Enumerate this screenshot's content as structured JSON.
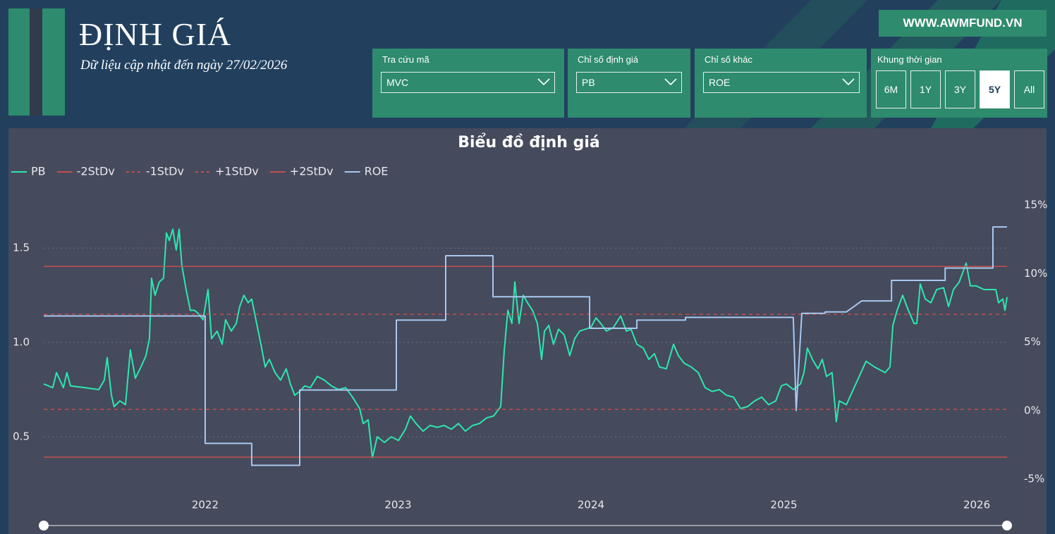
{
  "header": {
    "title": "ĐỊNH GIÁ",
    "subtitle": "Dữ liệu cập nhật đến ngày 27/02/2026",
    "website": "WWW.AWMFUND.VN"
  },
  "filters": [
    {
      "label": "Tra cứu mã",
      "value": "MVC"
    },
    {
      "label": "Chỉ số định giá",
      "value": "PB"
    },
    {
      "label": "Chỉ số khác",
      "value": "ROE"
    }
  ],
  "time_frame": {
    "label": "Khung thời gian",
    "options": [
      "6M",
      "1Y",
      "3Y",
      "5Y",
      "All"
    ],
    "selected": "5Y"
  },
  "chart_data": {
    "type": "line",
    "title": "Biểu đồ định giá",
    "legend": "top-left",
    "grid": true,
    "xlim": [
      2021.163,
      2026.157
    ],
    "xticks": [
      2022,
      2023,
      2024,
      2025,
      2026
    ],
    "ylim": [
      0.276,
      1.728
    ],
    "yticks": [
      0.5,
      {
        "value": 1,
        "label": "1.0"
      },
      1.5
    ],
    "y2lim": [
      -5,
      15
    ],
    "y2ticks": [
      {
        "value": -5,
        "label": "-5%"
      },
      {
        "value": 0,
        "label": "0%"
      },
      {
        "value": 5,
        "label": "5%"
      },
      {
        "value": 10,
        "label": "10%"
      },
      {
        "value": 15,
        "label": "15%"
      }
    ],
    "series": [
      {
        "name": "PB",
        "color": "#2ee6b0",
        "dash": false,
        "x": [
          2021.163,
          2021.21,
          2021.229,
          2021.265,
          2021.283,
          2021.302,
          2021.375,
          2021.448,
          2021.477,
          2021.492,
          2021.514,
          2021.528,
          2021.558,
          2021.587,
          2021.612,
          2021.638,
          2021.667,
          2021.693,
          2021.711,
          2021.722,
          2021.74,
          2021.762,
          2021.784,
          2021.799,
          2021.814,
          2021.832,
          2021.85,
          2021.865,
          2021.879,
          2021.901,
          2021.923,
          2021.945,
          2021.967,
          2021.989,
          2022.015,
          2022.033,
          2022.062,
          2022.088,
          2022.106,
          2022.135,
          2022.161,
          2022.179,
          2022.201,
          2022.223,
          2022.241,
          2022.263,
          2022.289,
          2022.311,
          2022.333,
          2022.362,
          2022.391,
          2022.42,
          2022.442,
          2022.464,
          2022.49,
          2022.516,
          2022.545,
          2022.581,
          2022.618,
          2022.654,
          2022.691,
          2022.728,
          2022.764,
          2022.801,
          2022.819,
          2022.845,
          2022.867,
          2022.892,
          2022.929,
          2022.965,
          2023.002,
          2023.038,
          2023.064,
          2023.093,
          2023.13,
          2023.166,
          2023.203,
          2023.239,
          2023.276,
          2023.313,
          2023.349,
          2023.386,
          2023.422,
          2023.459,
          2023.495,
          2023.532,
          2023.55,
          2023.569,
          2023.59,
          2023.605,
          2023.627,
          2023.649,
          2023.671,
          2023.697,
          2023.722,
          2023.744,
          2023.759,
          2023.781,
          2023.806,
          2023.832,
          2023.861,
          2023.89,
          2023.916,
          2023.941,
          2023.971,
          2024.0,
          2024.026,
          2024.051,
          2024.08,
          2024.117,
          2024.154,
          2024.183,
          2024.208,
          2024.238,
          2024.271,
          2024.3,
          2024.329,
          2024.355,
          2024.391,
          2024.428,
          2024.453,
          2024.483,
          2024.519,
          2024.556,
          2024.592,
          2024.629,
          2024.665,
          2024.702,
          2024.739,
          2024.775,
          2024.812,
          2024.848,
          2024.885,
          2024.921,
          2024.958,
          2024.987,
          2025.013,
          2025.049,
          2025.086,
          2025.104,
          2025.122,
          2025.148,
          2025.177,
          2025.199,
          2025.221,
          2025.25,
          2025.272,
          2025.287,
          2025.324,
          2025.426,
          2025.47,
          2025.525,
          2025.55,
          2025.565,
          2025.587,
          2025.616,
          2025.645,
          2025.675,
          2025.689,
          2025.707,
          2025.733,
          2025.762,
          2025.792,
          2025.828,
          2025.854,
          2025.879,
          2025.909,
          2025.945,
          2025.967,
          2025.996,
          2026.037,
          2026.099,
          2026.113,
          2026.135,
          2026.146,
          2026.157
        ],
        "values": [
          0.78,
          0.76,
          0.84,
          0.76,
          0.84,
          0.77,
          0.76,
          0.75,
          0.8,
          0.92,
          0.72,
          0.66,
          0.69,
          0.67,
          0.96,
          0.81,
          0.87,
          0.93,
          1.02,
          1.34,
          1.25,
          1.32,
          1.34,
          1.58,
          1.54,
          1.6,
          1.49,
          1.6,
          1.41,
          1.28,
          1.17,
          1.17,
          1.15,
          1.12,
          1.28,
          1.02,
          1.06,
          0.99,
          1.12,
          1.06,
          1.1,
          1.19,
          1.25,
          1.21,
          1.23,
          1.12,
          0.99,
          0.87,
          0.91,
          0.84,
          0.8,
          0.86,
          0.78,
          0.72,
          0.74,
          0.77,
          0.76,
          0.82,
          0.8,
          0.77,
          0.75,
          0.76,
          0.71,
          0.65,
          0.57,
          0.59,
          0.39,
          0.5,
          0.47,
          0.5,
          0.48,
          0.54,
          0.61,
          0.57,
          0.53,
          0.56,
          0.55,
          0.56,
          0.54,
          0.57,
          0.53,
          0.56,
          0.57,
          0.6,
          0.61,
          0.66,
          0.95,
          1.17,
          1.1,
          1.32,
          1.1,
          1.25,
          1.21,
          1.17,
          1.1,
          0.91,
          1.06,
          1.09,
          0.99,
          1.07,
          1.04,
          0.93,
          1.02,
          1.06,
          1.07,
          1.08,
          1.13,
          1.1,
          1.06,
          1.08,
          1.14,
          1.06,
          1.07,
          0.99,
          0.97,
          0.91,
          0.94,
          0.87,
          0.86,
          0.99,
          0.93,
          0.89,
          0.87,
          0.84,
          0.76,
          0.74,
          0.75,
          0.72,
          0.71,
          0.65,
          0.66,
          0.69,
          0.71,
          0.67,
          0.69,
          0.77,
          0.78,
          0.75,
          0.78,
          0.84,
          0.97,
          0.91,
          0.86,
          0.91,
          0.82,
          0.84,
          0.58,
          0.69,
          0.67,
          0.9,
          0.87,
          0.84,
          0.87,
          1.09,
          1.17,
          1.25,
          1.17,
          1.1,
          1.1,
          1.31,
          1.23,
          1.21,
          1.28,
          1.29,
          1.19,
          1.28,
          1.32,
          1.42,
          1.3,
          1.3,
          1.28,
          1.28,
          1.21,
          1.23,
          1.17,
          1.24
        ]
      },
      {
        "name": "-2StDv",
        "color": "#c0504d",
        "dash": false,
        "x": [
          2021.163,
          2026.157
        ],
        "values": [
          0.392,
          0.392
        ]
      },
      {
        "name": "-1StDv",
        "color": "#c0504d",
        "dash": true,
        "x": [
          2021.163,
          2026.157
        ],
        "values": [
          0.645,
          0.645
        ]
      },
      {
        "name": "+1StDv",
        "color": "#c0504d",
        "dash": true,
        "x": [
          2021.163,
          2026.157
        ],
        "values": [
          1.149,
          1.149
        ]
      },
      {
        "name": "+2StDv",
        "color": "#c0504d",
        "dash": false,
        "x": [
          2021.163,
          2026.157
        ],
        "values": [
          1.403,
          1.403
        ]
      },
      {
        "name": "ROE",
        "color": "#a8c8f0",
        "dash": false,
        "axis": "y2",
        "x": [
          2021.163,
          2022.0,
          2022.0,
          2022.241,
          2022.241,
          2022.49,
          2022.49,
          2022.991,
          2022.991,
          2023.247,
          2023.247,
          2023.492,
          2023.492,
          2023.993,
          2023.993,
          2024.238,
          2024.238,
          2024.49,
          2024.49,
          2025.049,
          2025.064,
          2025.093,
          2025.214,
          2025.214,
          2025.324,
          2025.404,
          2025.558,
          2025.558,
          2025.836,
          2025.836,
          2026.084,
          2026.084,
          2026.157
        ],
        "values": [
          6.9,
          6.9,
          -2.4,
          -2.4,
          -4.0,
          -4.0,
          1.5,
          1.5,
          6.6,
          6.6,
          11.3,
          11.3,
          8.3,
          8.3,
          6.0,
          6.0,
          6.6,
          6.6,
          6.8,
          6.8,
          0.0,
          7.1,
          7.1,
          7.2,
          7.2,
          8.0,
          8.0,
          9.5,
          9.5,
          10.4,
          10.4,
          13.4,
          13.4
        ]
      }
    ]
  }
}
